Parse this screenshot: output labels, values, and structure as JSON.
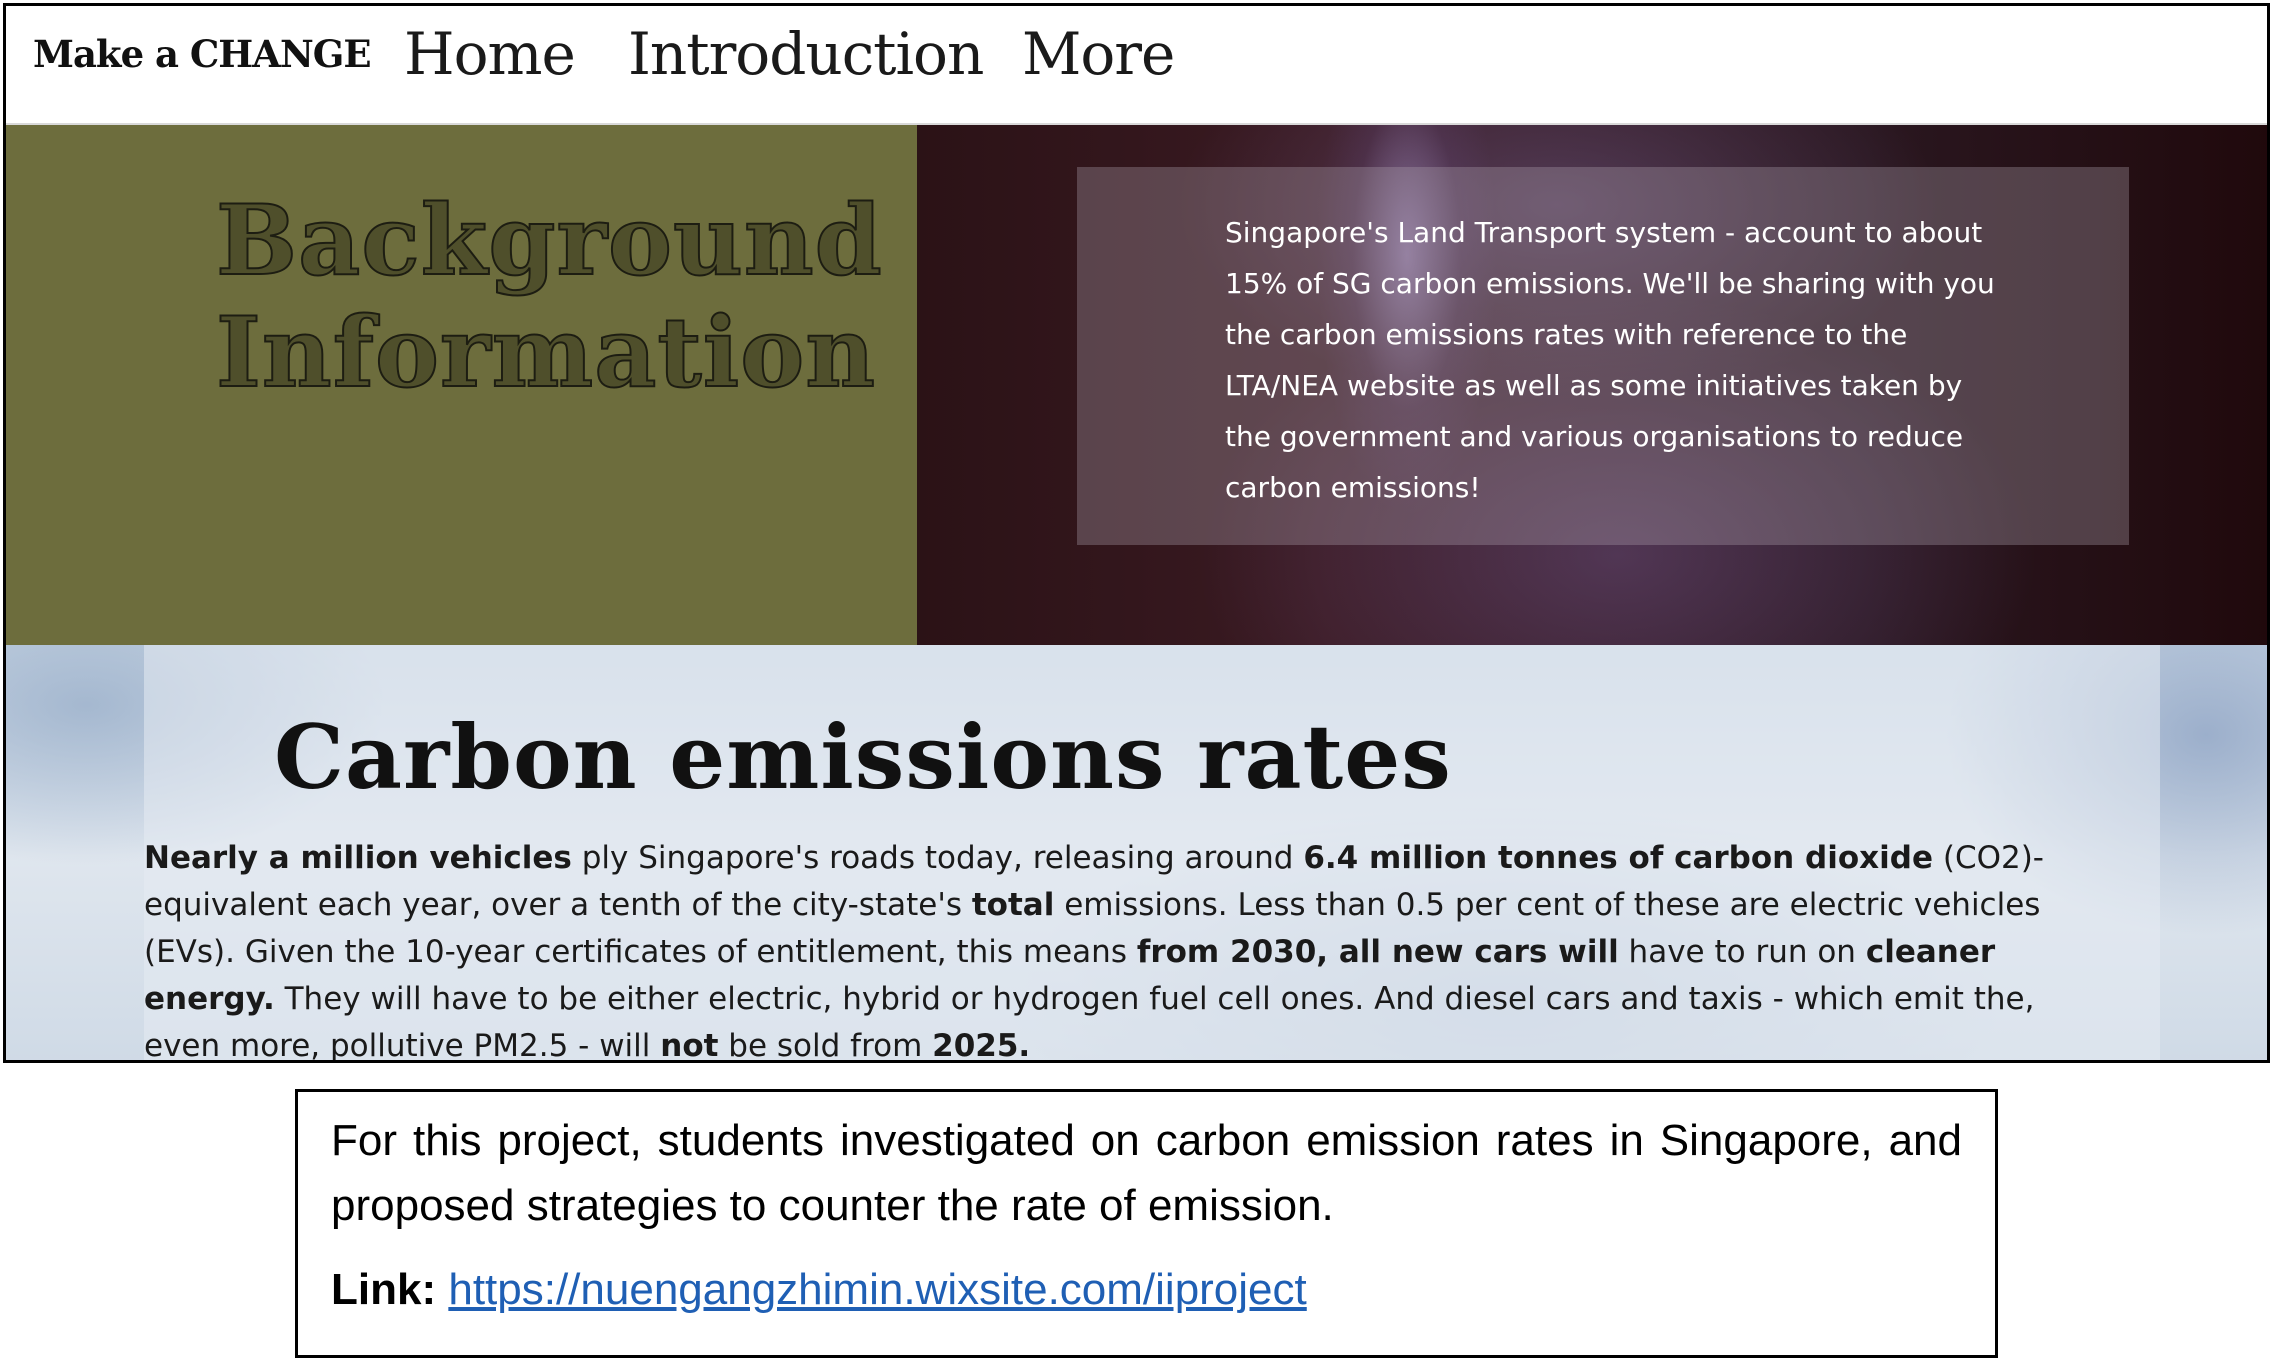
{
  "nav": {
    "logo": "Make a CHANGE",
    "links": [
      "Home",
      "Introduction",
      "More"
    ]
  },
  "background_section": {
    "title_line1": "Background",
    "title_line2": "Information",
    "text": "Singapore's Land Transport system - account to about 15% of SG carbon emissions. We'll be sharing with you the carbon emissions rates with reference to the LTA/NEA website as well as some initiatives taken by the government and various organisations to reduce carbon emissions!"
  },
  "carbon_section": {
    "title": "Carbon emissions rates",
    "body": [
      {
        "t": "Nearly a million vehicles",
        "b": true
      },
      {
        "t": " ply Singapore's roads today, releasing around ",
        "b": false
      },
      {
        "t": "6.4 million tonnes of carbon dioxide",
        "b": true
      },
      {
        "t": " (CO2)-equivalent each year, over a tenth of the city-state's ",
        "b": false
      },
      {
        "t": "total",
        "b": true
      },
      {
        "t": " emissions. Less than 0.5 per cent of these are electric vehicles (EVs). Given the 10-year certificates of entitlement, this means ",
        "b": false
      },
      {
        "t": "from 2030, all new cars will",
        "b": true
      },
      {
        "t": " have to run on ",
        "b": false
      },
      {
        "t": "cleaner energy.",
        "b": true
      },
      {
        "t": " They will have to be either electric, hybrid or hydrogen fuel cell ones. And diesel cars and taxis - which emit the, even more, pollutive PM2.5 - will ",
        "b": false
      },
      {
        "t": "not",
        "b": true
      },
      {
        "t": " be sold from ",
        "b": false
      },
      {
        "t": "2025.",
        "b": true
      }
    ]
  },
  "caption": {
    "text": "For this project, students investigated on carbon emission rates in Singapore, and proposed strategies to counter the rate of emission.",
    "link_label": "Link:",
    "link_url": "https://nuengangzhimin.wixsite.com/iiproject"
  }
}
